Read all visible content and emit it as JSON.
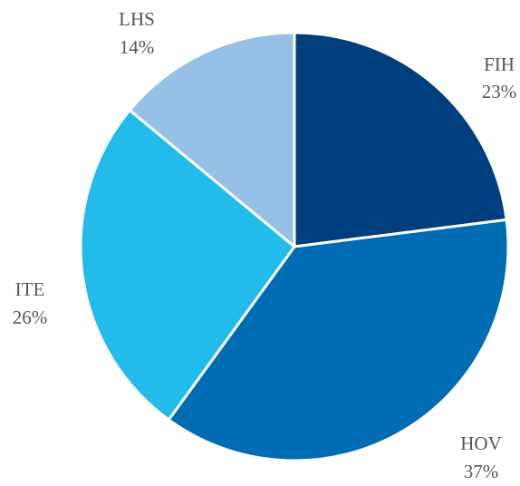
{
  "chart_data": {
    "type": "pie",
    "title": "",
    "slices": [
      {
        "label": "FIH",
        "value": 23,
        "percent_label": "23%",
        "color": "#003f7d"
      },
      {
        "label": "HOV",
        "value": 37,
        "percent_label": "37%",
        "color": "#006cb4"
      },
      {
        "label": "ITE",
        "value": 26,
        "percent_label": "26%",
        "color": "#22bbea"
      },
      {
        "label": "LHS",
        "value": 14,
        "percent_label": "14%",
        "color": "#96c0e6"
      }
    ],
    "start_angle_deg": 0,
    "direction": "clockwise",
    "legend": "none"
  }
}
